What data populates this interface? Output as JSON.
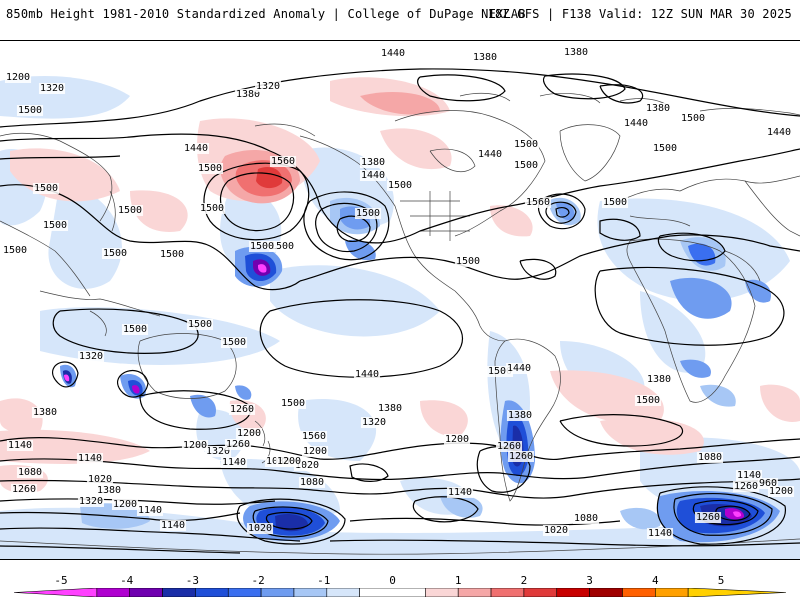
{
  "header": {
    "title_left": "850mb Height 1981-2010 Standardized Anomaly | College of DuPage NEXLAB",
    "title_right": "18Z GFS | F138 Valid: 12Z SUN MAR 30 2025"
  },
  "colors": {
    "anomaly": {
      "-5": "#ff40ff",
      "-4.5": "#b000d0",
      "-4": "#7000b0",
      "-3.5": "#1a2ea8",
      "-3": "#1f4fd8",
      "-2.5": "#3a6ff0",
      "-2": "#6f9cf0",
      "-1.5": "#a7c7f5",
      "-1": "#d6e6fa",
      "0": "#ffffff",
      "1": "#fad6d6",
      "1.5": "#f5a7a7",
      "2": "#f07070",
      "2.5": "#e03a3a",
      "3": "#c80000",
      "3.5": "#a00000",
      "4": "#ff6000",
      "4.5": "#ffa000",
      "5": "#ffd000"
    },
    "contour": "#000000",
    "borders": "#555555"
  },
  "colorbar": {
    "ticks": [
      "-5",
      "-4",
      "-3",
      "-2",
      "-1",
      "0",
      "1",
      "2",
      "3",
      "4",
      "5"
    ]
  },
  "contour_labels": [
    "1320",
    "1440",
    "1380",
    "1380",
    "1200",
    "1320",
    "1500",
    "1380",
    "1320",
    "1440",
    "1500",
    "1560",
    "1500",
    "1500",
    "1380",
    "1440",
    "1500",
    "1440",
    "1500",
    "1440",
    "1380",
    "1500",
    "1560",
    "1500",
    "1500",
    "1440",
    "1500",
    "1500",
    "1500",
    "1500",
    "1500",
    "1500",
    "1500",
    "1500",
    "1500",
    "1500",
    "1500",
    "1500",
    "1500",
    "1320",
    "1380",
    "1440",
    "1500",
    "1560",
    "1500",
    "1440",
    "1500",
    "1380",
    "1380",
    "1380",
    "1320",
    "1260",
    "1200",
    "1140",
    "1320",
    "1260",
    "1200",
    "1140",
    "1080",
    "1020",
    "1200",
    "1140",
    "1080",
    "1020",
    "1260",
    "1380",
    "1320",
    "1200",
    "1140",
    "1140",
    "1020",
    "1080",
    "1200",
    "1140",
    "1200",
    "1260",
    "1260",
    "1020",
    "1080",
    "1080",
    "1140",
    "960",
    "1260",
    "1200",
    "1260",
    "1140"
  ]
}
